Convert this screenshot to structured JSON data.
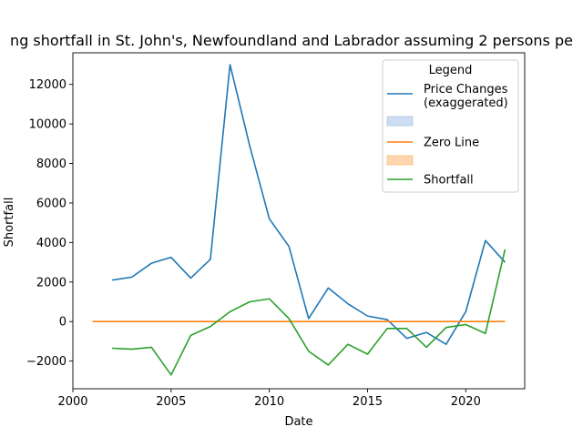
{
  "chart_data": {
    "type": "line",
    "title": "ng shortfall in St. John's, Newfoundland and Labrador assuming 2 persons pe",
    "xlabel": "Date",
    "ylabel": "Shortfall",
    "xlim": [
      2000,
      2023
    ],
    "ylim": [
      -3400,
      13600
    ],
    "xticks": [
      2000,
      2005,
      2010,
      2015,
      2020
    ],
    "yticks": [
      -2000,
      0,
      2000,
      4000,
      6000,
      8000,
      10000,
      12000
    ],
    "grid": false,
    "legend": {
      "title": "Legend",
      "placement": "top-right",
      "entries": [
        {
          "label": "Price Changes\n(exaggerated)",
          "kind": "line",
          "color": "#1f77b4"
        },
        {
          "label": "",
          "kind": "patch",
          "color": "#aec7e8"
        },
        {
          "label": "Zero Line",
          "kind": "line",
          "color": "#ff7f0e"
        },
        {
          "label": "",
          "kind": "patch",
          "color": "#ffbb78"
        },
        {
          "label": "Shortfall",
          "kind": "line",
          "color": "#2ca02c"
        }
      ]
    },
    "series": [
      {
        "name": "Price Changes\n(exaggerated)",
        "color": "#1f77b4",
        "x": [
          2002,
          2003,
          2004,
          2005,
          2006,
          2007,
          2008,
          2009,
          2010,
          2011,
          2012,
          2013,
          2014,
          2015,
          2016,
          2017,
          2018,
          2019,
          2020,
          2021,
          2022
        ],
        "y": [
          2100,
          2250,
          2950,
          3250,
          2200,
          3150,
          13000,
          8900,
          5200,
          3800,
          150,
          1700,
          900,
          280,
          100,
          -850,
          -550,
          -1150,
          500,
          4100,
          3000
        ]
      },
      {
        "name": "Zero Line",
        "color": "#ff7f0e",
        "x": [
          2001,
          2022
        ],
        "y": [
          0,
          0
        ]
      },
      {
        "name": "Shortfall",
        "color": "#2ca02c",
        "x": [
          2002,
          2003,
          2004,
          2005,
          2006,
          2007,
          2008,
          2009,
          2010,
          2011,
          2012,
          2013,
          2014,
          2015,
          2016,
          2017,
          2018,
          2019,
          2020,
          2021,
          2022
        ],
        "y": [
          -1350,
          -1400,
          -1300,
          -2700,
          -700,
          -250,
          500,
          1000,
          1150,
          150,
          -1500,
          -2200,
          -1150,
          -1650,
          -350,
          -350,
          -1300,
          -300,
          -150,
          -600,
          3650
        ]
      }
    ]
  }
}
